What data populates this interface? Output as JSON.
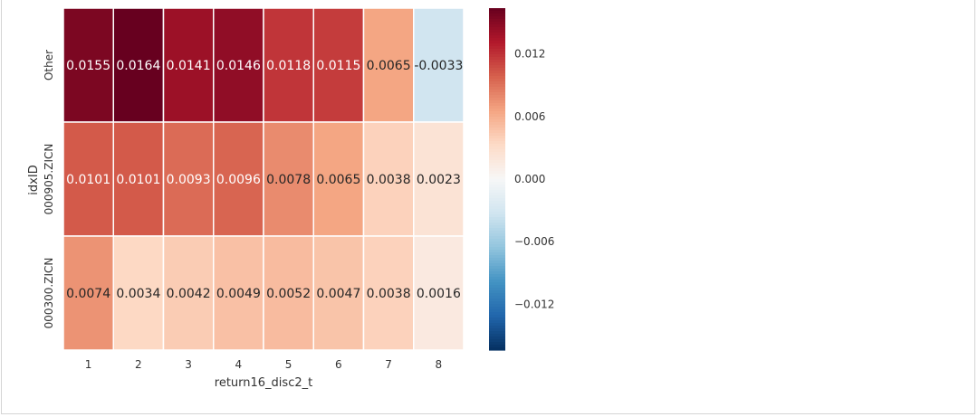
{
  "chart_data": {
    "type": "heatmap",
    "xlabel": "return16_disc2_t",
    "ylabel": "idxID",
    "x_categories": [
      "1",
      "2",
      "3",
      "4",
      "5",
      "6",
      "7",
      "8"
    ],
    "y_categories": [
      "Other",
      "000905.ZICN",
      "000300.ZICN"
    ],
    "values": [
      [
        0.0155,
        0.0164,
        0.0141,
        0.0146,
        0.0118,
        0.0115,
        0.0065,
        -0.0033
      ],
      [
        0.0101,
        0.0101,
        0.0093,
        0.0096,
        0.0078,
        0.0065,
        0.0038,
        0.0023
      ],
      [
        0.0074,
        0.0034,
        0.0042,
        0.0049,
        0.0052,
        0.0047,
        0.0038,
        0.0016
      ]
    ],
    "labels": [
      [
        "0.0155",
        "0.0164",
        "0.0141",
        "0.0146",
        "0.0118",
        "0.0115",
        "0.0065",
        "-0.0033"
      ],
      [
        "0.0101",
        "0.0101",
        "0.0093",
        "0.0096",
        "0.0078",
        "0.0065",
        "0.0038",
        "0.0023"
      ],
      [
        "0.0074",
        "0.0034",
        "0.0042",
        "0.0049",
        "0.0052",
        "0.0047",
        "0.0038",
        "0.0016"
      ]
    ],
    "colormap": "RdBu_r",
    "vmin": -0.0164,
    "vmax": 0.0164,
    "colorbar_ticks": [
      0.012,
      0.006,
      0.0,
      -0.006,
      -0.012
    ],
    "colorbar_tick_labels": [
      "0.012",
      "0.006",
      "0.000",
      "−0.006",
      "−0.012"
    ]
  }
}
